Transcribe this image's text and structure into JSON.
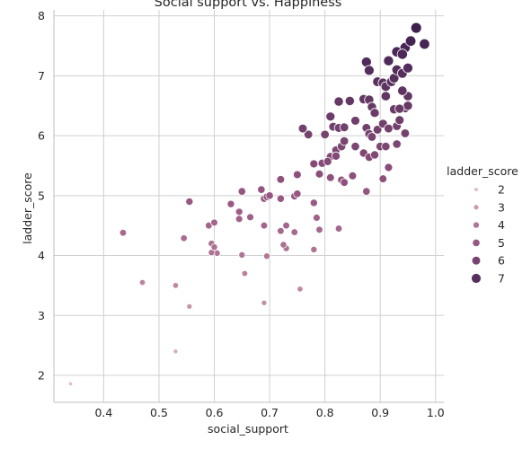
{
  "chart_data": {
    "type": "scatter",
    "title": "Social support vs. Happiness",
    "xlabel": "social_support",
    "ylabel": "ladder_score",
    "xlim": [
      0.31,
      1.015
    ],
    "ylim": [
      1.55,
      8.1
    ],
    "x_ticks": [
      "0.4",
      "0.5",
      "0.6",
      "0.7",
      "0.8",
      "0.9",
      "1.0"
    ],
    "x_tick_values": [
      0.4,
      0.5,
      0.6,
      0.7,
      0.8,
      0.9,
      1.0
    ],
    "y_ticks": [
      "2",
      "3",
      "4",
      "5",
      "6",
      "7",
      "8"
    ],
    "y_tick_values": [
      2,
      3,
      4,
      5,
      6,
      7,
      8
    ],
    "grid": true,
    "hue_variable": "ladder_score",
    "size_variable": "ladder_score",
    "legend": {
      "title": "ladder_score",
      "placement": "right",
      "entries": [
        {
          "label": "2",
          "value": 2
        },
        {
          "label": "3",
          "value": 3
        },
        {
          "label": "4",
          "value": 4
        },
        {
          "label": "5",
          "value": 5
        },
        {
          "label": "6",
          "value": 6
        },
        {
          "label": "7",
          "value": 7
        }
      ]
    },
    "color_range": [
      "#e6bfc2",
      "#3c1f4e"
    ],
    "points": [
      [
        0.34,
        1.86
      ],
      [
        0.53,
        2.4
      ],
      [
        0.69,
        3.21
      ],
      [
        0.555,
        3.15
      ],
      [
        0.53,
        3.5
      ],
      [
        0.47,
        3.55
      ],
      [
        0.655,
        3.7
      ],
      [
        0.755,
        3.44
      ],
      [
        0.695,
        3.99
      ],
      [
        0.65,
        4.01
      ],
      [
        0.605,
        4.04
      ],
      [
        0.595,
        4.05
      ],
      [
        0.595,
        4.2
      ],
      [
        0.6,
        4.14
      ],
      [
        0.73,
        4.12
      ],
      [
        0.725,
        4.18
      ],
      [
        0.78,
        4.1
      ],
      [
        0.545,
        4.29
      ],
      [
        0.435,
        4.38
      ],
      [
        0.72,
        4.41
      ],
      [
        0.745,
        4.39
      ],
      [
        0.79,
        4.43
      ],
      [
        0.825,
        4.45
      ],
      [
        0.73,
        4.5
      ],
      [
        0.59,
        4.5
      ],
      [
        0.6,
        4.55
      ],
      [
        0.645,
        4.61
      ],
      [
        0.665,
        4.64
      ],
      [
        0.69,
        4.5
      ],
      [
        0.785,
        4.63
      ],
      [
        0.645,
        4.73
      ],
      [
        0.63,
        4.86
      ],
      [
        0.69,
        4.95
      ],
      [
        0.695,
        4.98
      ],
      [
        0.72,
        4.95
      ],
      [
        0.745,
        4.99
      ],
      [
        0.75,
        5.03
      ],
      [
        0.78,
        4.88
      ],
      [
        0.65,
        5.07
      ],
      [
        0.685,
        5.1
      ],
      [
        0.7,
        5.0
      ],
      [
        0.555,
        4.9
      ],
      [
        0.72,
        5.27
      ],
      [
        0.75,
        5.35
      ],
      [
        0.78,
        5.53
      ],
      [
        0.79,
        5.36
      ],
      [
        0.795,
        5.54
      ],
      [
        0.81,
        5.3
      ],
      [
        0.83,
        5.26
      ],
      [
        0.835,
        5.22
      ],
      [
        0.85,
        5.33
      ],
      [
        0.875,
        5.07
      ],
      [
        0.905,
        5.28
      ],
      [
        0.915,
        5.47
      ],
      [
        0.81,
        5.65
      ],
      [
        0.805,
        5.57
      ],
      [
        0.82,
        5.76
      ],
      [
        0.82,
        5.66
      ],
      [
        0.83,
        5.82
      ],
      [
        0.835,
        5.91
      ],
      [
        0.855,
        5.82
      ],
      [
        0.87,
        5.71
      ],
      [
        0.88,
        5.64
      ],
      [
        0.89,
        5.68
      ],
      [
        0.9,
        5.82
      ],
      [
        0.91,
        5.82
      ],
      [
        0.93,
        5.86
      ],
      [
        0.945,
        6.04
      ],
      [
        0.8,
        6.02
      ],
      [
        0.77,
        6.02
      ],
      [
        0.76,
        6.12
      ],
      [
        0.815,
        6.15
      ],
      [
        0.825,
        6.13
      ],
      [
        0.835,
        6.14
      ],
      [
        0.855,
        6.25
      ],
      [
        0.875,
        6.13
      ],
      [
        0.88,
        6.03
      ],
      [
        0.885,
        5.98
      ],
      [
        0.895,
        6.1
      ],
      [
        0.905,
        6.2
      ],
      [
        0.915,
        6.12
      ],
      [
        0.93,
        6.16
      ],
      [
        0.935,
        6.26
      ],
      [
        0.945,
        6.46
      ],
      [
        0.95,
        6.5
      ],
      [
        0.81,
        6.32
      ],
      [
        0.825,
        6.57
      ],
      [
        0.845,
        6.58
      ],
      [
        0.87,
        6.61
      ],
      [
        0.88,
        6.6
      ],
      [
        0.885,
        6.48
      ],
      [
        0.89,
        6.38
      ],
      [
        0.91,
        6.66
      ],
      [
        0.925,
        6.44
      ],
      [
        0.935,
        6.45
      ],
      [
        0.95,
        6.66
      ],
      [
        0.94,
        6.75
      ],
      [
        0.895,
        6.9
      ],
      [
        0.905,
        6.88
      ],
      [
        0.91,
        6.82
      ],
      [
        0.92,
        6.9
      ],
      [
        0.925,
        6.96
      ],
      [
        0.93,
        7.1
      ],
      [
        0.94,
        7.04
      ],
      [
        0.95,
        7.13
      ],
      [
        0.915,
        7.25
      ],
      [
        0.875,
        7.23
      ],
      [
        0.88,
        7.09
      ],
      [
        0.93,
        7.4
      ],
      [
        0.945,
        7.47
      ],
      [
        0.94,
        7.36
      ],
      [
        0.955,
        7.58
      ],
      [
        0.965,
        7.8
      ],
      [
        0.98,
        7.53
      ]
    ]
  }
}
